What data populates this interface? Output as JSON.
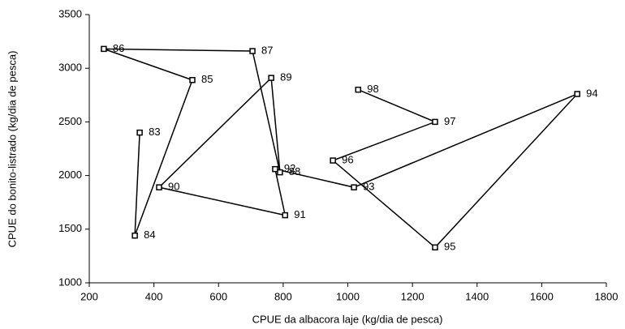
{
  "chart_data": {
    "type": "line",
    "x_label": "CPUE da albacora laje (kg/dia de pesca)",
    "y_label": "CPUE do bonito-listrado (kg/dia de pesca)",
    "labels": [
      "83",
      "84",
      "85",
      "86",
      "87",
      "88",
      "89",
      "90",
      "91",
      "92",
      "93",
      "94",
      "95",
      "96",
      "97",
      "98"
    ],
    "x": [
      356,
      341,
      519,
      245,
      705,
      790,
      763,
      416,
      806,
      775,
      1019,
      1710,
      1270,
      954,
      1270,
      1032
    ],
    "values": [
      2400,
      1440,
      2890,
      3180,
      3160,
      2030,
      2910,
      1890,
      1630,
      2060,
      1890,
      2760,
      1330,
      2140,
      2500,
      2800
    ],
    "color": "#000000",
    "xlim": [
      200,
      1800
    ],
    "xticks": [
      200,
      400,
      600,
      800,
      1000,
      1200,
      1400,
      1600,
      1800
    ],
    "ylim": [
      1000,
      3500
    ],
    "yticks": [
      1000,
      1500,
      2000,
      2500,
      3000,
      3500
    ],
    "grid": false
  }
}
